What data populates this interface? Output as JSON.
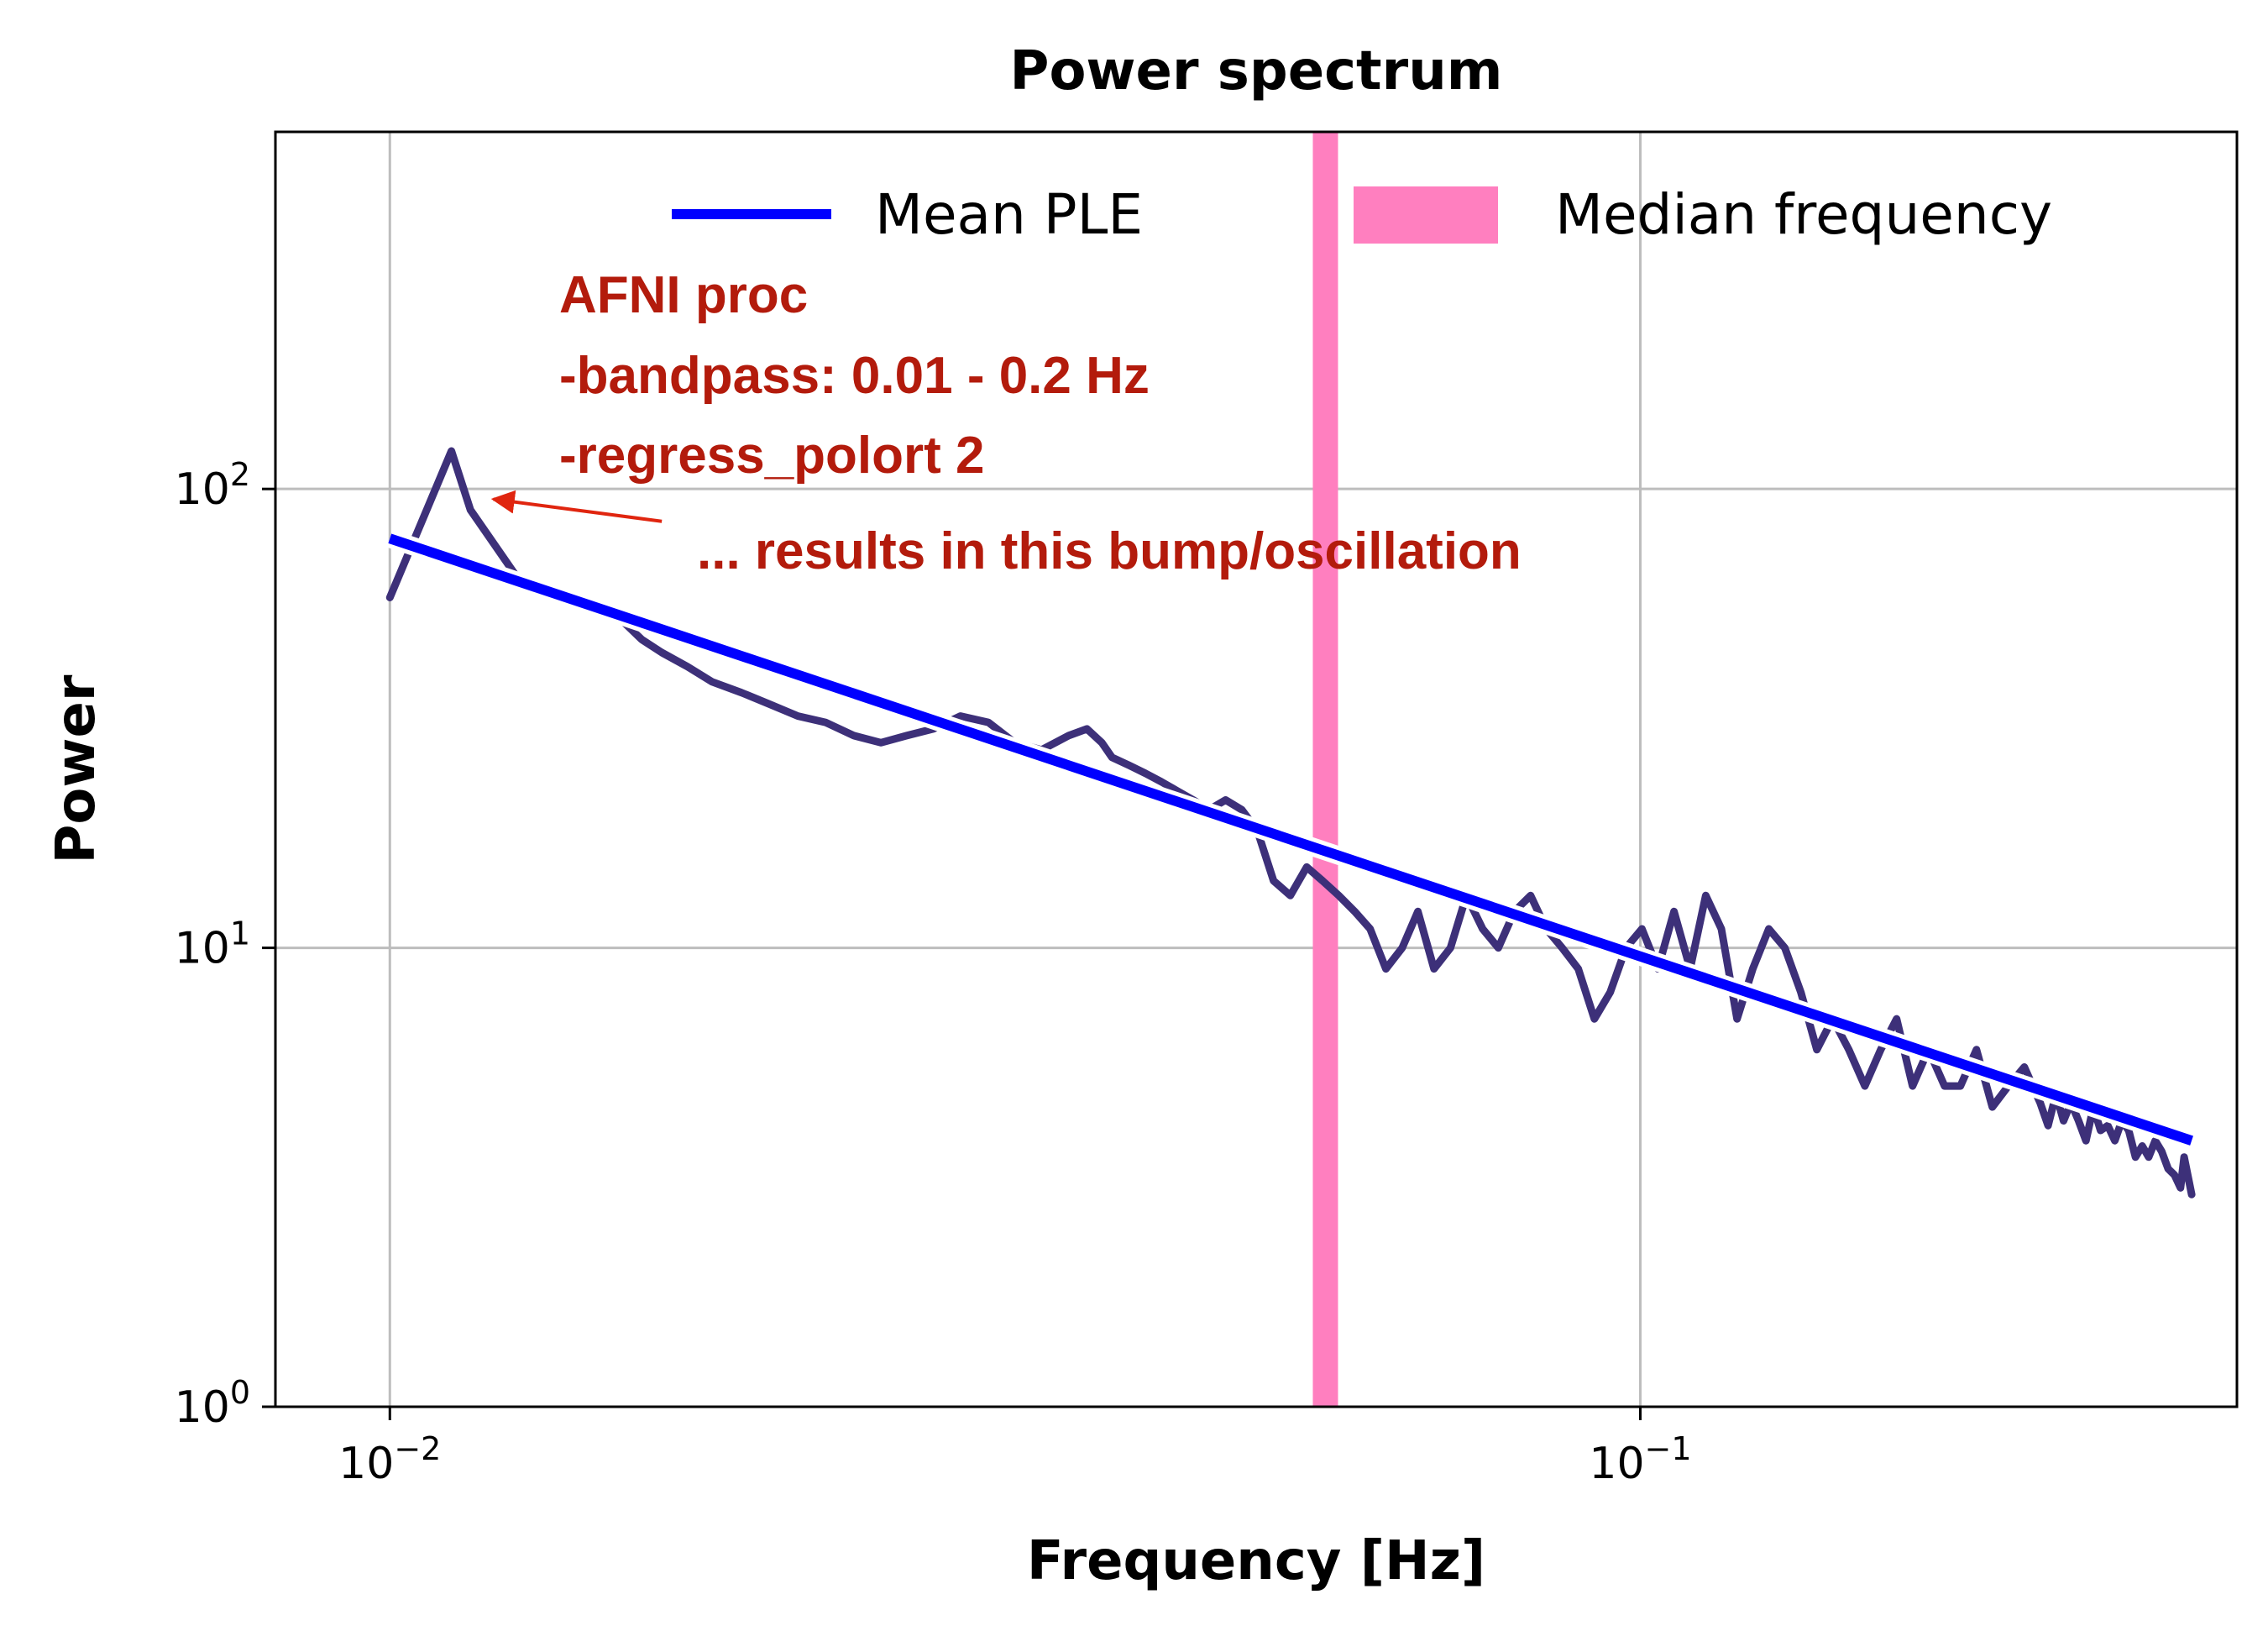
{
  "chart_data": {
    "type": "line",
    "title": "Power spectrum",
    "xlabel": "Frequency [Hz]",
    "ylabel": "Power",
    "xscale": "log",
    "yscale": "log",
    "xlim": [
      0.0081,
      0.3
    ],
    "ylim": [
      1,
      600
    ],
    "grid": true,
    "legend_position": "top",
    "x_ticks": [
      {
        "value": 0.01,
        "base": "10",
        "exp": "−2"
      },
      {
        "value": 0.1,
        "base": "10",
        "exp": "−1"
      }
    ],
    "y_ticks": [
      {
        "value": 1,
        "base": "10",
        "exp": "0"
      },
      {
        "value": 10,
        "base": "10",
        "exp": "1"
      },
      {
        "value": 100,
        "base": "10",
        "exp": "2"
      }
    ],
    "colors": {
      "spectrum": "#3d3079",
      "fit": "#0000ff",
      "median_band": "#ff7fbf",
      "grid": "#bdbdbd",
      "annotation": "#b31b0c"
    },
    "legend": [
      {
        "label": "Mean PLE",
        "kind": "line",
        "color": "#0000ff"
      },
      {
        "label": "Median frequency",
        "kind": "patch",
        "color": "#ff7fbf"
      }
    ],
    "spectrum": {
      "x": [
        0.01,
        0.0112,
        0.0116,
        0.0126,
        0.0132,
        0.0137,
        0.0141,
        0.0147,
        0.0153,
        0.0159,
        0.0165,
        0.0173,
        0.0181,
        0.0191,
        0.0201,
        0.0212,
        0.0223,
        0.0235,
        0.0247,
        0.0259,
        0.0272,
        0.0286,
        0.0301,
        0.0316,
        0.0332,
        0.0349,
        0.0361,
        0.0371,
        0.0378,
        0.039,
        0.0402,
        0.0414,
        0.0426,
        0.0439,
        0.0452,
        0.0466,
        0.048,
        0.0494,
        0.0509,
        0.0525,
        0.0541,
        0.0557,
        0.0574,
        0.0591,
        0.0608,
        0.0626,
        0.0645,
        0.0664,
        0.0684,
        0.0705,
        0.0726,
        0.0748,
        0.077,
        0.0793,
        0.0817,
        0.0841,
        0.0866,
        0.0892,
        0.0919,
        0.0946,
        0.0974,
        0.1003,
        0.1033,
        0.1064,
        0.1096,
        0.1128,
        0.1161,
        0.1195,
        0.123,
        0.1267,
        0.1305,
        0.1344,
        0.1384,
        0.1425,
        0.1468,
        0.1512,
        0.1557,
        0.1603,
        0.1651,
        0.17,
        0.1751,
        0.1803,
        0.1857,
        0.1912,
        0.1969,
        0.2028,
        0.2088,
        0.2119,
        0.215,
        0.218,
        0.221,
        0.2241,
        0.2272,
        0.2303,
        0.2334,
        0.2365,
        0.2396,
        0.2427,
        0.2458,
        0.2489,
        0.252,
        0.255,
        0.2581,
        0.2612,
        0.2643,
        0.2674,
        0.2704,
        0.2722,
        0.276
      ],
      "y": [
        58,
        121,
        90,
        65,
        60,
        60,
        58,
        56,
        52,
        47,
        44,
        41,
        38,
        36,
        34,
        32,
        31,
        29,
        28,
        29,
        30,
        32,
        31,
        28,
        27,
        29,
        30,
        28,
        26,
        25,
        24,
        23,
        22,
        21,
        20,
        21,
        20,
        18,
        14,
        13,
        15,
        14,
        13,
        12,
        11,
        9,
        10,
        12,
        9,
        10,
        13,
        11,
        10,
        12,
        13,
        11,
        10,
        9,
        7,
        8,
        10,
        11,
        9,
        12,
        9,
        13,
        11,
        7,
        9,
        11,
        10,
        8,
        6,
        7,
        6,
        5,
        6,
        7,
        5,
        6,
        5,
        5,
        6,
        4.5,
        5,
        5.5,
        4.6,
        4.1,
        4.8,
        4.2,
        4.6,
        4.2,
        3.8,
        4.5,
        4.0,
        4.1,
        3.8,
        4.2,
        4.0,
        3.5,
        3.7,
        3.5,
        3.8,
        3.6,
        3.3,
        3.2,
        3.0,
        3.5,
        2.9
      ]
    },
    "fit": {
      "x": [
        0.01,
        0.276
      ],
      "y": [
        78,
        3.8
      ]
    },
    "median_frequency": 0.056,
    "annotation": {
      "lines": [
        "AFNI proc",
        "-bandpass: 0.01 - 0.2 Hz",
        "-regress_polort 2"
      ],
      "arrow_text": "... results in this bump/oscillation",
      "arrow_target": {
        "x": 0.0121,
        "y": 95
      },
      "arrow_tail": {
        "x": 0.0165,
        "y": 85
      }
    }
  }
}
